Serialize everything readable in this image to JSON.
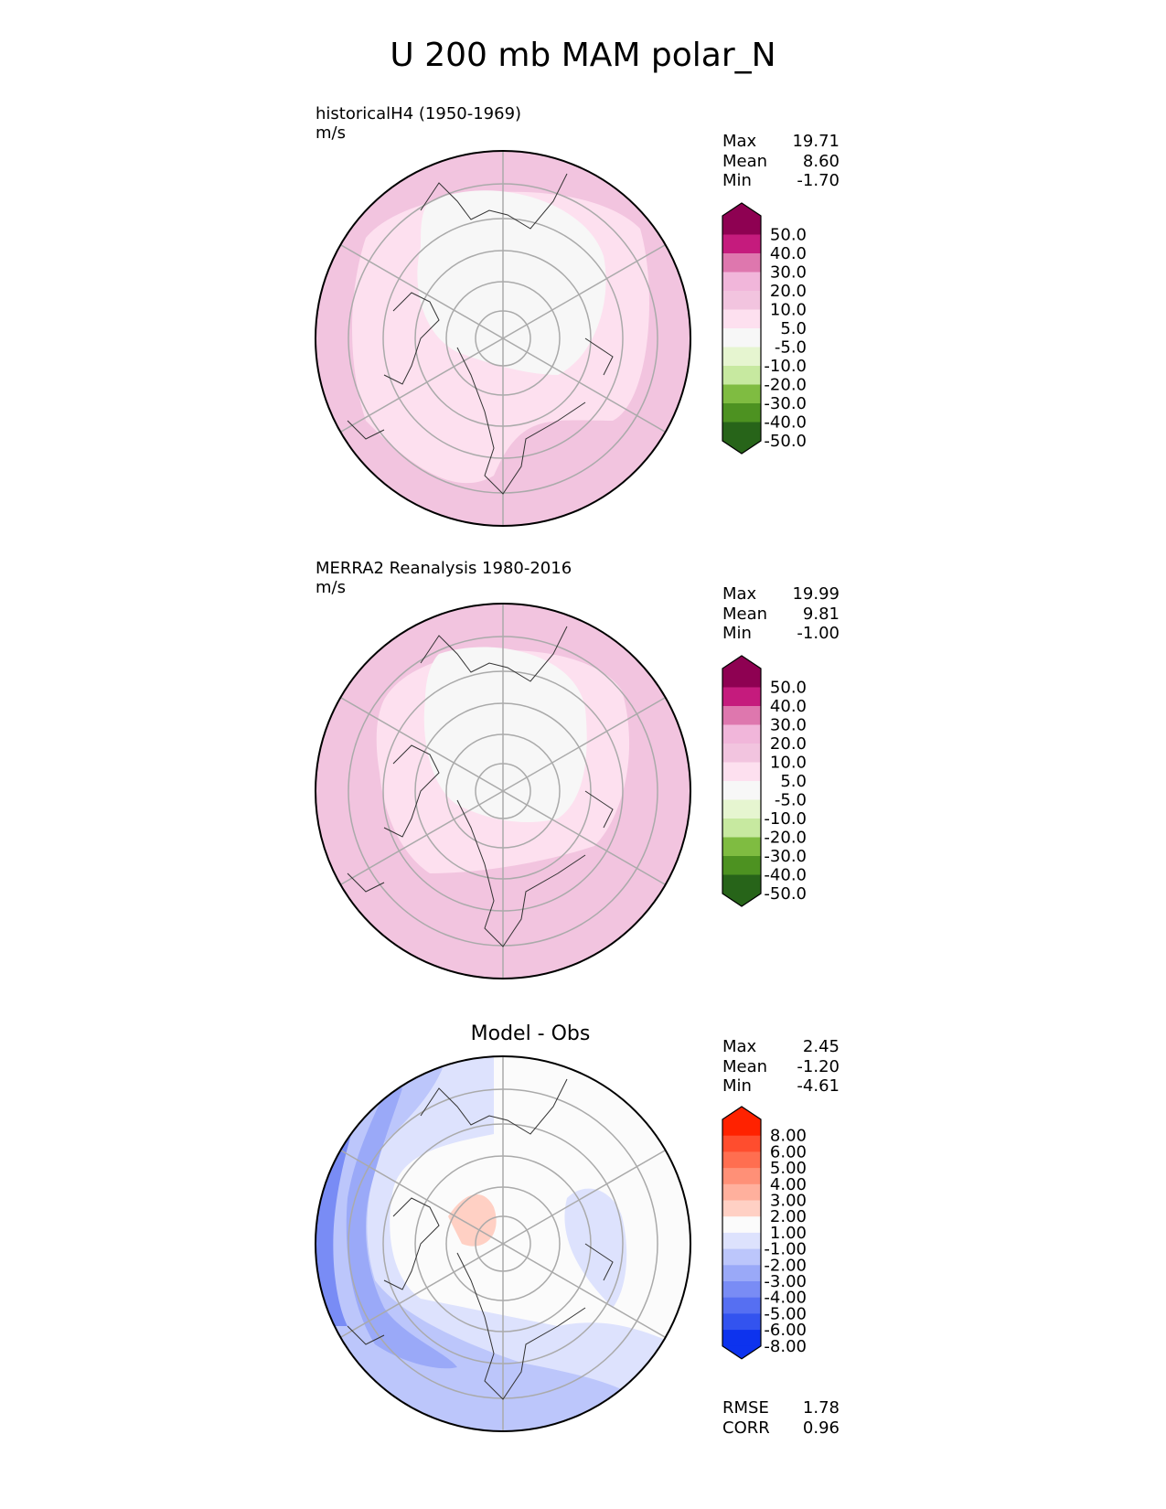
{
  "title": "U 200 mb MAM polar_N",
  "chart_data": [
    {
      "type": "contour-map",
      "projection": "north-polar-stereographic",
      "title": "historicalH4 (1950-1969)",
      "units": "m/s",
      "stats": [
        {
          "label": "Max",
          "value": "19.71"
        },
        {
          "label": "Mean",
          "value": "8.60"
        },
        {
          "label": "Min",
          "value": "-1.70"
        }
      ],
      "colorbar": {
        "ticks": [
          "50.0",
          "40.0",
          "30.0",
          "20.0",
          "10.0",
          "5.0",
          "-5.0",
          "-10.0",
          "-20.0",
          "-30.0",
          "-40.0",
          "-50.0"
        ],
        "colors": [
          "#8e0152",
          "#c51b7d",
          "#de77ae",
          "#f1b6da",
          "#f2c4df",
          "#fde0ef",
          "#f7f7f7",
          "#e6f5d0",
          "#c7e9a0",
          "#7fbc41",
          "#4d9221",
          "#276419"
        ]
      }
    },
    {
      "type": "contour-map",
      "projection": "north-polar-stereographic",
      "title": "MERRA2 Reanalysis 1980-2016",
      "units": "m/s",
      "stats": [
        {
          "label": "Max",
          "value": "19.99"
        },
        {
          "label": "Mean",
          "value": "9.81"
        },
        {
          "label": "Min",
          "value": "-1.00"
        }
      ],
      "colorbar": {
        "ticks": [
          "50.0",
          "40.0",
          "30.0",
          "20.0",
          "10.0",
          "5.0",
          "-5.0",
          "-10.0",
          "-20.0",
          "-30.0",
          "-40.0",
          "-50.0"
        ],
        "colors": [
          "#8e0152",
          "#c51b7d",
          "#de77ae",
          "#f1b6da",
          "#f2c4df",
          "#fde0ef",
          "#f7f7f7",
          "#e6f5d0",
          "#c7e9a0",
          "#7fbc41",
          "#4d9221",
          "#276419"
        ]
      }
    },
    {
      "type": "contour-map",
      "projection": "north-polar-stereographic",
      "title": "Model - Obs",
      "units": "",
      "stats": [
        {
          "label": "Max",
          "value": "2.45"
        },
        {
          "label": "Mean",
          "value": "-1.20"
        },
        {
          "label": "Min",
          "value": "-4.61"
        }
      ],
      "metrics": [
        {
          "label": "RMSE",
          "value": "1.78"
        },
        {
          "label": "CORR",
          "value": "0.96"
        }
      ],
      "colorbar": {
        "ticks": [
          "8.00",
          "6.00",
          "5.00",
          "4.00",
          "3.00",
          "2.00",
          "1.00",
          "-1.00",
          "-2.00",
          "-3.00",
          "-4.00",
          "-5.00",
          "-6.00",
          "-8.00"
        ],
        "colors": [
          "#ff2200",
          "#ff4d2e",
          "#ff6e50",
          "#ff9077",
          "#ffb09d",
          "#ffd0c4",
          "#fbfbfb",
          "#dde2fd",
          "#bcc6fb",
          "#9aa9f8",
          "#798cf5",
          "#566ff2",
          "#3353ef",
          "#0d33ee"
        ]
      }
    }
  ]
}
